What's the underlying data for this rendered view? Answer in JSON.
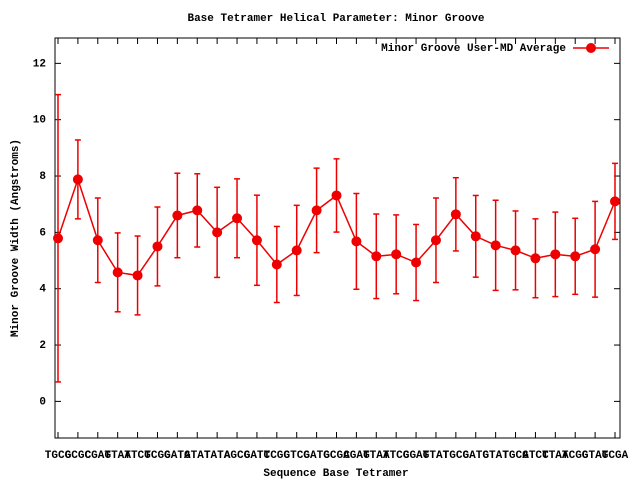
{
  "chart_data": {
    "type": "line",
    "title": "Base Tetramer Helical Parameter: Minor Groove",
    "x_label": "Sequence Base Tetramer",
    "y_label": "Minor Groove Width (Angstroms)",
    "categories": [
      "TGCG",
      "GCGC",
      "CGAT",
      "GTAT",
      "ATCG",
      "TCGG",
      "GATG",
      "ATAT",
      "TATA",
      "AGCG",
      "GATC",
      "TCGC",
      "GTCG",
      "GATG",
      "GCGA",
      "CGAT",
      "GTAT",
      "ATCG",
      "CGAT",
      "GTAT",
      "TGCG",
      "GATG",
      "GTAT",
      "TGCG",
      "ATCT",
      "CTAT",
      "ACGG",
      "GTAT",
      "GCGA"
    ],
    "series": [
      {
        "name": "Minor Groove User-MD Average",
        "color": "#ee0000",
        "values": [
          5.79,
          7.88,
          5.72,
          4.58,
          4.47,
          5.5,
          6.6,
          6.78,
          6.0,
          6.5,
          5.72,
          4.86,
          5.36,
          6.78,
          7.31,
          5.68,
          5.15,
          5.22,
          4.93,
          5.72,
          6.64,
          5.86,
          5.54,
          5.36,
          5.08,
          5.22,
          5.15,
          5.4,
          7.1
        ],
        "errors": [
          5.1,
          1.4,
          1.5,
          1.4,
          1.4,
          1.4,
          1.5,
          1.3,
          1.6,
          1.4,
          1.6,
          1.35,
          1.6,
          1.5,
          1.3,
          1.7,
          1.5,
          1.4,
          1.35,
          1.5,
          1.3,
          1.45,
          1.6,
          1.4,
          1.4,
          1.5,
          1.35,
          1.7,
          1.35
        ]
      }
    ],
    "ylim": [
      -1.3,
      12.9
    ],
    "yticks": [
      0,
      2,
      4,
      6,
      8,
      10,
      12
    ],
    "legend": "top-right"
  }
}
